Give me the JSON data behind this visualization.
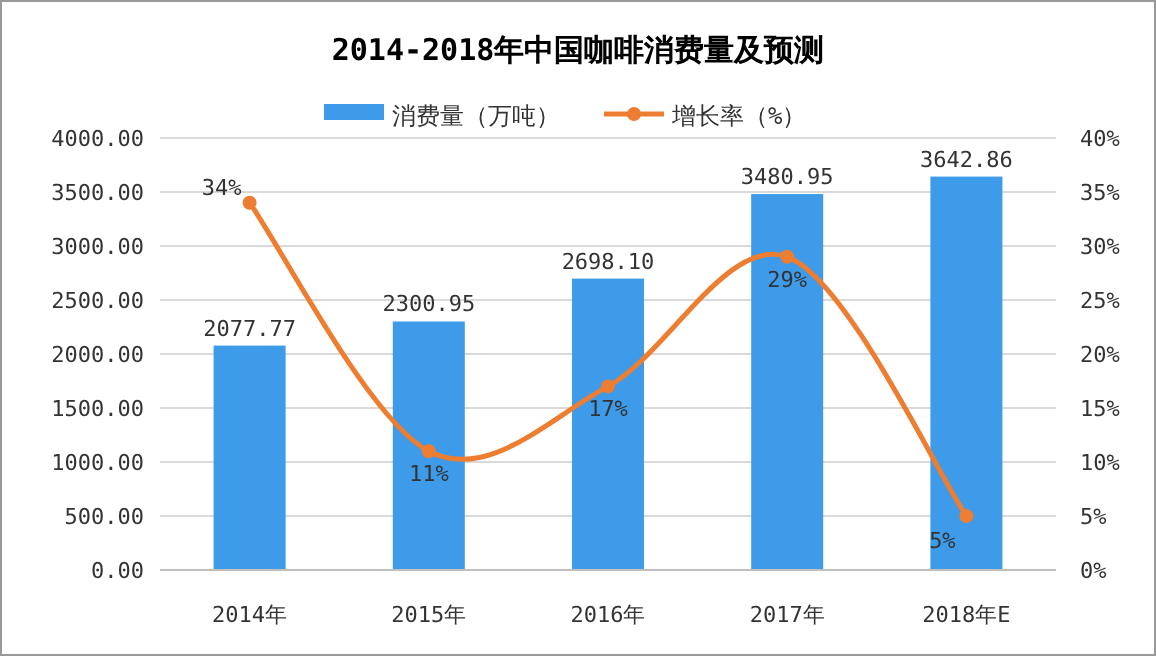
{
  "chart_data": {
    "type": "bar",
    "title": "2014-2018年中国咖啡消费量及预测",
    "categories": [
      "2014年",
      "2015年",
      "2016年",
      "2017年",
      "2018年E"
    ],
    "series": [
      {
        "name": "消费量（万吨）",
        "color": "#3d9be9",
        "values": [
          2077.77,
          2300.95,
          2698.1,
          3480.95,
          3642.86
        ],
        "value_labels": [
          "2077.77",
          "2300.95",
          "2698.10",
          "3480.95",
          "3642.86"
        ]
      },
      {
        "name": "增长率（%）",
        "type": "line",
        "axis": "y2",
        "color": "#ed7d31",
        "marker": "circle",
        "values": [
          34,
          11,
          17,
          29,
          5
        ],
        "value_labels": [
          "34%",
          "11%",
          "17%",
          "29%",
          "5%"
        ]
      }
    ],
    "ylim": [
      0,
      4000
    ],
    "yticks": [
      {
        "value": 0,
        "label": "0.00"
      },
      {
        "value": 500,
        "label": "500.00"
      },
      {
        "value": 1000,
        "label": "1000.00"
      },
      {
        "value": 1500,
        "label": "1500.00"
      },
      {
        "value": 2000,
        "label": "2000.00"
      },
      {
        "value": 2500,
        "label": "2500.00"
      },
      {
        "value": 3000,
        "label": "3000.00"
      },
      {
        "value": 3500,
        "label": "3500.00"
      },
      {
        "value": 4000,
        "label": "4000.00"
      }
    ],
    "y2lim": [
      0,
      40
    ],
    "y2ticks": [
      {
        "value": 0,
        "label": "0%"
      },
      {
        "value": 5,
        "label": "5%"
      },
      {
        "value": 10,
        "label": "10%"
      },
      {
        "value": 15,
        "label": "15%"
      },
      {
        "value": 20,
        "label": "20%"
      },
      {
        "value": 25,
        "label": "25%"
      },
      {
        "value": 30,
        "label": "30%"
      },
      {
        "value": 35,
        "label": "35%"
      },
      {
        "value": 40,
        "label": "40%"
      }
    ],
    "grid": "y",
    "legend": "top"
  }
}
